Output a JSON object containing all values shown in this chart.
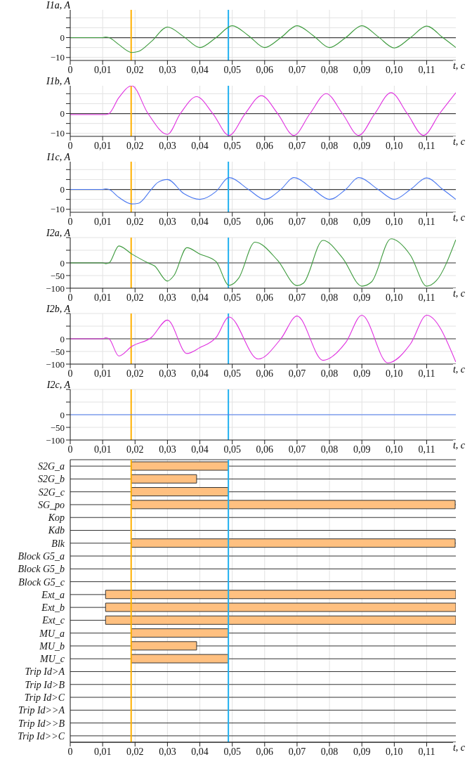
{
  "chart_data": [
    {
      "type": "line",
      "ylabel": "I1a, A",
      "xlabel": "t, c",
      "xlim": [
        0,
        0.119
      ],
      "xticks": [
        {
          "value": 0,
          "label": "0"
        },
        {
          "value": 0.01,
          "label": "0,01"
        },
        {
          "value": 0.02,
          "label": "0,02"
        },
        {
          "value": 0.03,
          "label": "0,03"
        },
        {
          "value": 0.04,
          "label": "0,04"
        },
        {
          "value": 0.05,
          "label": "0,05"
        },
        {
          "value": 0.06,
          "label": "0,06"
        },
        {
          "value": 0.07,
          "label": "0,07"
        },
        {
          "value": 0.08,
          "label": "0,08"
        },
        {
          "value": 0.09,
          "label": "0,09"
        },
        {
          "value": 0.1,
          "label": "0,10"
        },
        {
          "value": 0.11,
          "label": "0,11"
        }
      ],
      "ylim": [
        -11.5,
        14
      ],
      "yticks": [
        {
          "value": -10,
          "label": "−10"
        },
        {
          "value": -5,
          "label": null
        },
        {
          "value": 0,
          "label": "0"
        },
        {
          "value": 5,
          "label": null
        },
        {
          "value": 10,
          "label": null
        }
      ],
      "grid": true,
      "series": [
        {
          "color": "#3c9a3c",
          "x": [
            0,
            0.01,
            0.011,
            0.012,
            0.015,
            0.019,
            0.021,
            0.025,
            0.03,
            0.035,
            0.04,
            0.045,
            0.05,
            0.055,
            0.06,
            0.065,
            0.07,
            0.075,
            0.08,
            0.085,
            0.09,
            0.095,
            0.1,
            0.105,
            0.11,
            0.115,
            0.119
          ],
          "values": [
            0,
            0,
            0.3,
            0,
            -3.5,
            -7.5,
            -7,
            -2,
            5.3,
            0.5,
            -5,
            0,
            6,
            1,
            -5,
            0,
            6,
            1,
            -5,
            0,
            6,
            0.5,
            -5.2,
            0,
            5.8,
            0,
            -5
          ]
        }
      ],
      "ref_lines": [
        {
          "axis": "y",
          "value": 0,
          "color": "#404040"
        },
        {
          "axis": "x",
          "value": 0.0188,
          "color": "#ffb000"
        },
        {
          "axis": "x",
          "value": 0.0488,
          "color": "#20b0f0"
        }
      ]
    },
    {
      "type": "line",
      "ylabel": "I1b, A",
      "xlabel": "t, c",
      "xlim": [
        0,
        0.119
      ],
      "xticks": [
        {
          "value": 0,
          "label": "0"
        },
        {
          "value": 0.01,
          "label": "0,01"
        },
        {
          "value": 0.02,
          "label": "0,02"
        },
        {
          "value": 0.03,
          "label": "0,03"
        },
        {
          "value": 0.04,
          "label": "0,04"
        },
        {
          "value": 0.05,
          "label": "0,05"
        },
        {
          "value": 0.06,
          "label": "0,06"
        },
        {
          "value": 0.07,
          "label": "0,07"
        },
        {
          "value": 0.08,
          "label": "0,08"
        },
        {
          "value": 0.09,
          "label": "0,09"
        },
        {
          "value": 0.1,
          "label": "0,10"
        },
        {
          "value": 0.11,
          "label": "0,11"
        }
      ],
      "ylim": [
        -11.5,
        14
      ],
      "yticks": [
        {
          "value": -10,
          "label": "−10"
        },
        {
          "value": -5,
          "label": null
        },
        {
          "value": 0,
          "label": "0"
        },
        {
          "value": 5,
          "label": null
        },
        {
          "value": 10,
          "label": null
        }
      ],
      "grid": true,
      "series": [
        {
          "color": "#e030e0",
          "x": [
            0,
            0.01,
            0.011,
            0.012,
            0.015,
            0.019,
            0.024,
            0.03,
            0.034,
            0.039,
            0.044,
            0.049,
            0.054,
            0.059,
            0.064,
            0.069,
            0.074,
            0.079,
            0.084,
            0.089,
            0.094,
            0.099,
            0.104,
            0.109,
            0.114,
            0.119
          ],
          "values": [
            -0.5,
            -0.5,
            -0.5,
            0,
            8,
            14,
            0,
            -10.5,
            0,
            8.5,
            0,
            -11,
            0,
            9,
            0,
            -11,
            0,
            10,
            0,
            -11,
            0,
            10.5,
            0,
            -11,
            0,
            10.5
          ]
        }
      ],
      "ref_lines": [
        {
          "axis": "y",
          "value": 0,
          "color": "#404040"
        },
        {
          "axis": "x",
          "value": 0.0188,
          "color": "#ffb000"
        },
        {
          "axis": "x",
          "value": 0.0488,
          "color": "#20b0f0"
        }
      ]
    },
    {
      "type": "line",
      "ylabel": "I1c, A",
      "xlabel": "t, c",
      "xlim": [
        0,
        0.119
      ],
      "xticks": [
        {
          "value": 0,
          "label": "0"
        },
        {
          "value": 0.01,
          "label": "0,01"
        },
        {
          "value": 0.02,
          "label": "0,02"
        },
        {
          "value": 0.03,
          "label": "0,03"
        },
        {
          "value": 0.04,
          "label": "0,04"
        },
        {
          "value": 0.05,
          "label": "0,05"
        },
        {
          "value": 0.06,
          "label": "0,06"
        },
        {
          "value": 0.07,
          "label": "0,07"
        },
        {
          "value": 0.08,
          "label": "0,08"
        },
        {
          "value": 0.09,
          "label": "0,09"
        },
        {
          "value": 0.1,
          "label": "0,10"
        },
        {
          "value": 0.11,
          "label": "0,11"
        }
      ],
      "ylim": [
        -11.5,
        14
      ],
      "yticks": [
        {
          "value": -10,
          "label": "−10"
        },
        {
          "value": -5,
          "label": null
        },
        {
          "value": 0,
          "label": "0"
        },
        {
          "value": 5,
          "label": null
        },
        {
          "value": 10,
          "label": null
        }
      ],
      "grid": true,
      "series": [
        {
          "color": "#4a78f0",
          "x": [
            0,
            0.01,
            0.011,
            0.012,
            0.015,
            0.019,
            0.021,
            0.025,
            0.027,
            0.03,
            0.035,
            0.04,
            0.045,
            0.049,
            0.055,
            0.06,
            0.065,
            0.069,
            0.075,
            0.08,
            0.085,
            0.089,
            0.095,
            0.1,
            0.105,
            0.11,
            0.115,
            0.119
          ],
          "values": [
            0,
            0,
            0.3,
            0,
            -4,
            -7.3,
            -7,
            0,
            3.5,
            5,
            -2,
            -5,
            -1,
            6,
            0,
            -5,
            0,
            6,
            0,
            -5,
            0,
            6,
            0,
            -5,
            0,
            5.8,
            0,
            -5
          ]
        }
      ],
      "ref_lines": [
        {
          "axis": "y",
          "value": 0,
          "color": "#404040"
        },
        {
          "axis": "x",
          "value": 0.0188,
          "color": "#ffb000"
        },
        {
          "axis": "x",
          "value": 0.0488,
          "color": "#20b0f0"
        }
      ]
    },
    {
      "type": "line",
      "ylabel": "I2a, A",
      "xlabel": "t, c",
      "xlim": [
        0,
        0.119
      ],
      "xticks": [
        {
          "value": 0,
          "label": "0"
        },
        {
          "value": 0.01,
          "label": "0,01"
        },
        {
          "value": 0.02,
          "label": "0,02"
        },
        {
          "value": 0.03,
          "label": "0,03"
        },
        {
          "value": 0.04,
          "label": "0,04"
        },
        {
          "value": 0.05,
          "label": "0,05"
        },
        {
          "value": 0.06,
          "label": "0,06"
        },
        {
          "value": 0.07,
          "label": "0,07"
        },
        {
          "value": 0.08,
          "label": "0,08"
        },
        {
          "value": 0.09,
          "label": "0,09"
        },
        {
          "value": 0.1,
          "label": "0,10"
        },
        {
          "value": 0.11,
          "label": "0,11"
        }
      ],
      "ylim": [
        -100,
        100
      ],
      "yticks": [
        {
          "value": -100,
          "label": "−100"
        },
        {
          "value": -50,
          "label": "−50"
        },
        {
          "value": 0,
          "label": "0"
        },
        {
          "value": 50,
          "label": null
        },
        {
          "value": 100,
          "label": null
        }
      ],
      "grid": true,
      "series": [
        {
          "color": "#3c9a3c",
          "x": [
            0,
            0.01,
            0.011,
            0.012,
            0.015,
            0.019,
            0.024,
            0.026,
            0.03,
            0.032,
            0.036,
            0.04,
            0.045,
            0.049,
            0.05,
            0.052,
            0.057,
            0.064,
            0.07,
            0.072,
            0.078,
            0.084,
            0.09,
            0.093,
            0.099,
            0.105,
            0.11,
            0.113,
            0.119
          ],
          "values": [
            0,
            0,
            -3,
            0,
            67,
            35,
            0,
            -12,
            -72,
            -50,
            60,
            35,
            5,
            -89,
            -85,
            -60,
            82,
            10,
            -90,
            -80,
            89,
            20,
            -92,
            -75,
            95,
            30,
            -92,
            -70,
            92
          ]
        }
      ],
      "ref_lines": [
        {
          "axis": "y",
          "value": 0,
          "color": "#404040"
        },
        {
          "axis": "x",
          "value": 0.0188,
          "color": "#ffb000"
        },
        {
          "axis": "x",
          "value": 0.0488,
          "color": "#20b0f0"
        }
      ]
    },
    {
      "type": "line",
      "ylabel": "I2b, A",
      "xlabel": "t, c",
      "xlim": [
        0,
        0.119
      ],
      "xticks": [
        {
          "value": 0,
          "label": "0"
        },
        {
          "value": 0.01,
          "label": "0,01"
        },
        {
          "value": 0.02,
          "label": "0,02"
        },
        {
          "value": 0.03,
          "label": "0,03"
        },
        {
          "value": 0.04,
          "label": "0,04"
        },
        {
          "value": 0.05,
          "label": "0,05"
        },
        {
          "value": 0.06,
          "label": "0,06"
        },
        {
          "value": 0.07,
          "label": "0,07"
        },
        {
          "value": 0.08,
          "label": "0,08"
        },
        {
          "value": 0.09,
          "label": "0,09"
        },
        {
          "value": 0.1,
          "label": "0,10"
        },
        {
          "value": 0.11,
          "label": "0,11"
        }
      ],
      "ylim": [
        -100,
        100
      ],
      "yticks": [
        {
          "value": -100,
          "label": "−100"
        },
        {
          "value": -50,
          "label": "−50"
        },
        {
          "value": 0,
          "label": "0"
        },
        {
          "value": 50,
          "label": null
        },
        {
          "value": 100,
          "label": null
        }
      ],
      "grid": true,
      "series": [
        {
          "color": "#e030e0",
          "x": [
            0,
            0.01,
            0.011,
            0.012,
            0.015,
            0.019,
            0.025,
            0.03,
            0.036,
            0.04,
            0.045,
            0.049,
            0.058,
            0.065,
            0.07,
            0.078,
            0.085,
            0.09,
            0.098,
            0.105,
            0.11,
            0.119
          ],
          "values": [
            0,
            0,
            4,
            0,
            -68,
            -30,
            5,
            74,
            -58,
            -35,
            5,
            86,
            -80,
            0,
            90,
            -85,
            -15,
            93,
            -95,
            -20,
            93,
            -92
          ]
        }
      ],
      "ref_lines": [
        {
          "axis": "y",
          "value": 0,
          "color": "#404040"
        },
        {
          "axis": "x",
          "value": 0.0188,
          "color": "#ffb000"
        },
        {
          "axis": "x",
          "value": 0.0488,
          "color": "#20b0f0"
        }
      ]
    },
    {
      "type": "line",
      "ylabel": "I2c, A",
      "xlabel": "t, c",
      "xlim": [
        0,
        0.119
      ],
      "xticks": [
        {
          "value": 0,
          "label": "0"
        },
        {
          "value": 0.01,
          "label": "0,01"
        },
        {
          "value": 0.02,
          "label": "0,02"
        },
        {
          "value": 0.03,
          "label": "0,03"
        },
        {
          "value": 0.04,
          "label": "0,04"
        },
        {
          "value": 0.05,
          "label": "0,05"
        },
        {
          "value": 0.06,
          "label": "0,06"
        },
        {
          "value": 0.07,
          "label": "0,07"
        },
        {
          "value": 0.08,
          "label": "0,08"
        },
        {
          "value": 0.09,
          "label": "0,09"
        },
        {
          "value": 0.1,
          "label": "0,10"
        },
        {
          "value": 0.11,
          "label": "0,11"
        }
      ],
      "ylim": [
        -100,
        100
      ],
      "yticks": [
        {
          "value": -100,
          "label": "−100"
        },
        {
          "value": -50,
          "label": "−50"
        },
        {
          "value": 0,
          "label": "0"
        },
        {
          "value": 50,
          "label": null
        },
        {
          "value": 100,
          "label": null
        }
      ],
      "grid": true,
      "series": [
        {
          "color": "#4a78f0",
          "x": [
            0,
            0.119
          ],
          "values": [
            0,
            0
          ]
        }
      ],
      "ref_lines": [
        {
          "axis": "x",
          "value": 0.0188,
          "color": "#ffb000"
        },
        {
          "axis": "x",
          "value": 0.0488,
          "color": "#20b0f0"
        }
      ]
    },
    {
      "type": "bar",
      "orientation": "horizontal",
      "xlabel": "t, c",
      "xlim": [
        0,
        0.119
      ],
      "xticks": [
        {
          "value": 0,
          "label": "0"
        },
        {
          "value": 0.01,
          "label": "0,01"
        },
        {
          "value": 0.02,
          "label": "0,02"
        },
        {
          "value": 0.03,
          "label": "0,03"
        },
        {
          "value": 0.04,
          "label": "0,04"
        },
        {
          "value": 0.05,
          "label": "0,05"
        },
        {
          "value": 0.06,
          "label": "0,06"
        },
        {
          "value": 0.07,
          "label": "0,07"
        },
        {
          "value": 0.08,
          "label": "0,08"
        },
        {
          "value": 0.09,
          "label": "0,09"
        },
        {
          "value": 0.1,
          "label": "0,10"
        },
        {
          "value": 0.11,
          "label": "0,11"
        }
      ],
      "grid": true,
      "color": "#ffc080",
      "categories": [
        "S2G_a",
        "S2G_b",
        "S2G_c",
        "SG_po",
        "Kop",
        "Kdb",
        "Blk",
        "Block G5_a",
        "Block G5_b",
        "Block G5_c",
        "Ext_a",
        "Ext_b",
        "Ext_c",
        "MU_a",
        "MU_b",
        "MU_c",
        "Trip Id>A",
        "Trip Id>B",
        "Trip Id>C",
        "Trip Id>>A",
        "Trip Id>>B",
        "Trip Id>>C"
      ],
      "base": [
        0.0188,
        0.0188,
        0.0188,
        0.0188,
        null,
        null,
        0.0188,
        null,
        null,
        null,
        0.0109,
        0.0109,
        0.0109,
        0.0188,
        0.0188,
        0.0188,
        null,
        null,
        null,
        null,
        null,
        null
      ],
      "values": [
        0.03,
        0.0202,
        0.03,
        0.1,
        null,
        null,
        0.1,
        null,
        null,
        null,
        0.1081,
        0.1081,
        0.1081,
        0.03,
        0.0202,
        0.03,
        null,
        null,
        null,
        null,
        null,
        null
      ],
      "ref_lines": [
        {
          "axis": "x",
          "value": 0.0188,
          "color": "#ffb000"
        },
        {
          "axis": "x",
          "value": 0.0488,
          "color": "#20b0f0"
        }
      ]
    }
  ]
}
